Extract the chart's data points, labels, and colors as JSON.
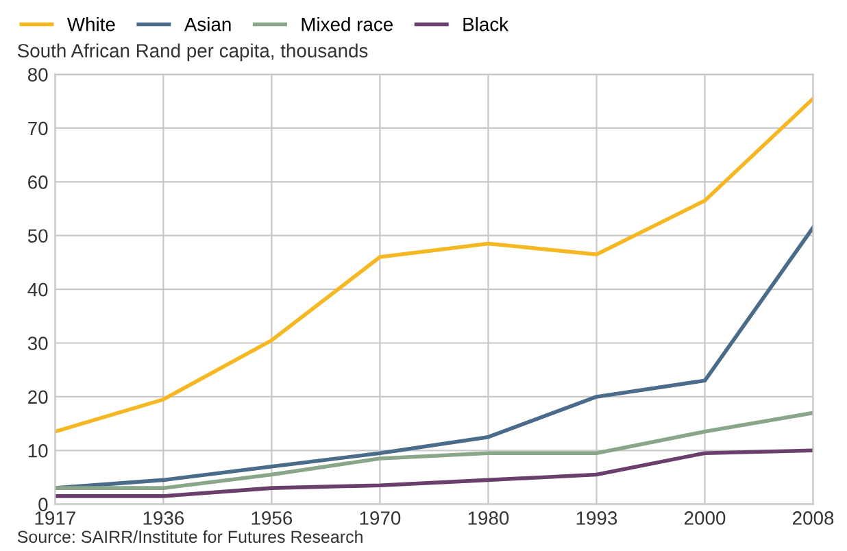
{
  "chart_data": {
    "type": "line",
    "ylabel": "South African Rand per capita, thousands",
    "categories": [
      "1917",
      "1936",
      "1956",
      "1970",
      "1980",
      "1993",
      "2000",
      "2008"
    ],
    "series": [
      {
        "name": "White",
        "color": "#f5b822",
        "values": [
          13.5,
          19.5,
          30.5,
          46,
          48.5,
          46.5,
          56.5,
          75.5
        ]
      },
      {
        "name": "Asian",
        "color": "#4a6b8a",
        "values": [
          3,
          4.5,
          7,
          9.5,
          12.5,
          20,
          23,
          51.5
        ]
      },
      {
        "name": "Mixed race",
        "color": "#8aa68a",
        "values": [
          3,
          3,
          5.5,
          8.5,
          9.5,
          9.5,
          13.5,
          17
        ]
      },
      {
        "name": "Black",
        "color": "#6b3f6b",
        "values": [
          1.5,
          1.5,
          3,
          3.5,
          4.5,
          5.5,
          9.5,
          10
        ]
      }
    ],
    "ylim": [
      0,
      80
    ],
    "yticks": [
      0,
      10,
      20,
      30,
      40,
      50,
      60,
      70,
      80
    ],
    "grid": true,
    "legend": "top left",
    "marker": "none",
    "line_style": "solid",
    "annotations": [
      "Source: SAIRR/Institute for Futures Research"
    ]
  }
}
